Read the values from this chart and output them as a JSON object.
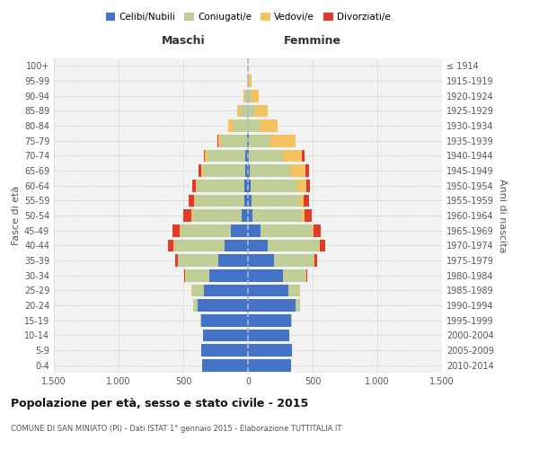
{
  "age_groups": [
    "0-4",
    "5-9",
    "10-14",
    "15-19",
    "20-24",
    "25-29",
    "30-34",
    "35-39",
    "40-44",
    "45-49",
    "50-54",
    "55-59",
    "60-64",
    "65-69",
    "70-74",
    "75-79",
    "80-84",
    "85-89",
    "90-94",
    "95-99",
    "100+"
  ],
  "birth_years": [
    "2010-2014",
    "2005-2009",
    "2000-2004",
    "1995-1999",
    "1990-1994",
    "1985-1989",
    "1980-1984",
    "1975-1979",
    "1970-1974",
    "1965-1969",
    "1960-1964",
    "1955-1959",
    "1950-1954",
    "1945-1949",
    "1940-1944",
    "1935-1939",
    "1930-1934",
    "1925-1929",
    "1920-1924",
    "1915-1919",
    "≤ 1914"
  ],
  "male": {
    "celibi": [
      355,
      360,
      350,
      360,
      390,
      340,
      300,
      230,
      180,
      130,
      50,
      30,
      25,
      20,
      20,
      10,
      0,
      0,
      0,
      0,
      0
    ],
    "coniugati": [
      0,
      0,
      0,
      10,
      35,
      90,
      180,
      310,
      390,
      390,
      380,
      380,
      370,
      330,
      290,
      200,
      110,
      60,
      20,
      5,
      2
    ],
    "vedovi": [
      0,
      0,
      0,
      0,
      0,
      5,
      5,
      5,
      5,
      5,
      5,
      5,
      5,
      10,
      20,
      20,
      40,
      20,
      15,
      5,
      0
    ],
    "divorziati": [
      0,
      0,
      0,
      0,
      0,
      5,
      10,
      20,
      40,
      55,
      65,
      45,
      30,
      20,
      10,
      5,
      0,
      0,
      0,
      0,
      0
    ]
  },
  "female": {
    "nubili": [
      330,
      340,
      320,
      330,
      370,
      310,
      270,
      200,
      150,
      100,
      35,
      25,
      20,
      15,
      10,
      5,
      0,
      0,
      0,
      0,
      0
    ],
    "coniugate": [
      0,
      0,
      0,
      10,
      35,
      85,
      175,
      310,
      400,
      395,
      380,
      375,
      360,
      310,
      260,
      170,
      90,
      55,
      25,
      10,
      2
    ],
    "vedove": [
      0,
      0,
      0,
      0,
      0,
      5,
      5,
      5,
      5,
      10,
      20,
      30,
      70,
      120,
      150,
      190,
      140,
      100,
      60,
      20,
      2
    ],
    "divorziate": [
      0,
      0,
      0,
      0,
      0,
      5,
      10,
      20,
      45,
      60,
      60,
      40,
      30,
      25,
      15,
      5,
      0,
      0,
      0,
      0,
      0
    ]
  },
  "color_celibi": "#4472C4",
  "color_coniugati": "#BFCE96",
  "color_vedovi": "#F5C261",
  "color_divorziati": "#E03B2A",
  "bg_color": "#F2F2F2",
  "grid_color": "#CCCCCC",
  "title": "Popolazione per età, sesso e stato civile - 2015",
  "subtitle": "COMUNE DI SAN MINIATO (PI) - Dati ISTAT 1° gennaio 2015 - Elaborazione TUTTITALIA.IT",
  "xlabel_left": "Maschi",
  "xlabel_right": "Femmine",
  "ylabel_left": "Fasce di età",
  "ylabel_right": "Anni di nascita",
  "xlim": 1500,
  "xticks": [
    -1500,
    -1000,
    -500,
    0,
    500,
    1000,
    1500
  ],
  "xticklabels": [
    "1.500",
    "1.000",
    "500",
    "0",
    "500",
    "1.000",
    "1.500"
  ]
}
